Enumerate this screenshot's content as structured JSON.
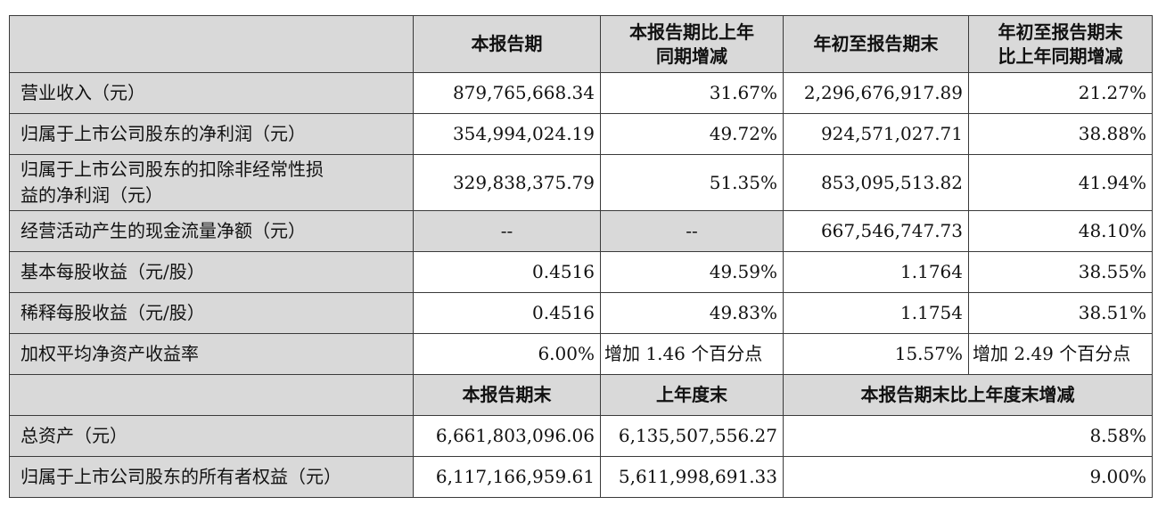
{
  "colors": {
    "header_bg": "#d9d9d9",
    "border": "#3a3a3a",
    "text": "#111111"
  },
  "header": {
    "c1": "本报告期",
    "c2_line1": "本报告期比上年",
    "c2_line2": "同期增减",
    "c3": "年初至报告期末",
    "c4_line1": "年初至报告期末",
    "c4_line2": "比上年同期增减"
  },
  "rows": [
    {
      "label": "营业收入（元）",
      "current": "879,765,668.34",
      "change": "31.67%",
      "ytd": "2,296,676,917.89",
      "ytd_change": "21.27%"
    },
    {
      "label": "归属于上市公司股东的净利润（元）",
      "current": "354,994,024.19",
      "change": "49.72%",
      "ytd": "924,571,027.71",
      "ytd_change": "38.88%"
    },
    {
      "label_line1": "归属于上市公司股东的扣除非经常性损",
      "label_line2": "益的净利润（元）",
      "current": "329,838,375.79",
      "change": "51.35%",
      "ytd": "853,095,513.82",
      "ytd_change": "41.94%"
    },
    {
      "label": "经营活动产生的现金流量净额（元）",
      "current": "--",
      "change": "--",
      "ytd": "667,546,747.73",
      "ytd_change": "48.10%"
    },
    {
      "label": "基本每股收益（元/股）",
      "current": "0.4516",
      "change": "49.59%",
      "ytd": "1.1764",
      "ytd_change": "38.55%"
    },
    {
      "label": "稀释每股收益（元/股）",
      "current": "0.4516",
      "change": "49.83%",
      "ytd": "1.1754",
      "ytd_change": "38.51%"
    },
    {
      "label": "加权平均净资产收益率",
      "current": "6.00%",
      "change": "增加 1.46 个百分点",
      "ytd": "15.57%",
      "ytd_change": "增加 2.49 个百分点"
    }
  ],
  "header2": {
    "c1": "本报告期末",
    "c2": "上年度末",
    "c3": "本报告期末比上年度末增减"
  },
  "rows2": [
    {
      "label": "总资产（元）",
      "period_end": "6,661,803,096.06",
      "prior_year_end": "6,135,507,556.27",
      "change": "8.58%"
    },
    {
      "label": "归属于上市公司股东的所有者权益（元）",
      "period_end": "6,117,166,959.61",
      "prior_year_end": "5,611,998,691.33",
      "change": "9.00%"
    }
  ]
}
